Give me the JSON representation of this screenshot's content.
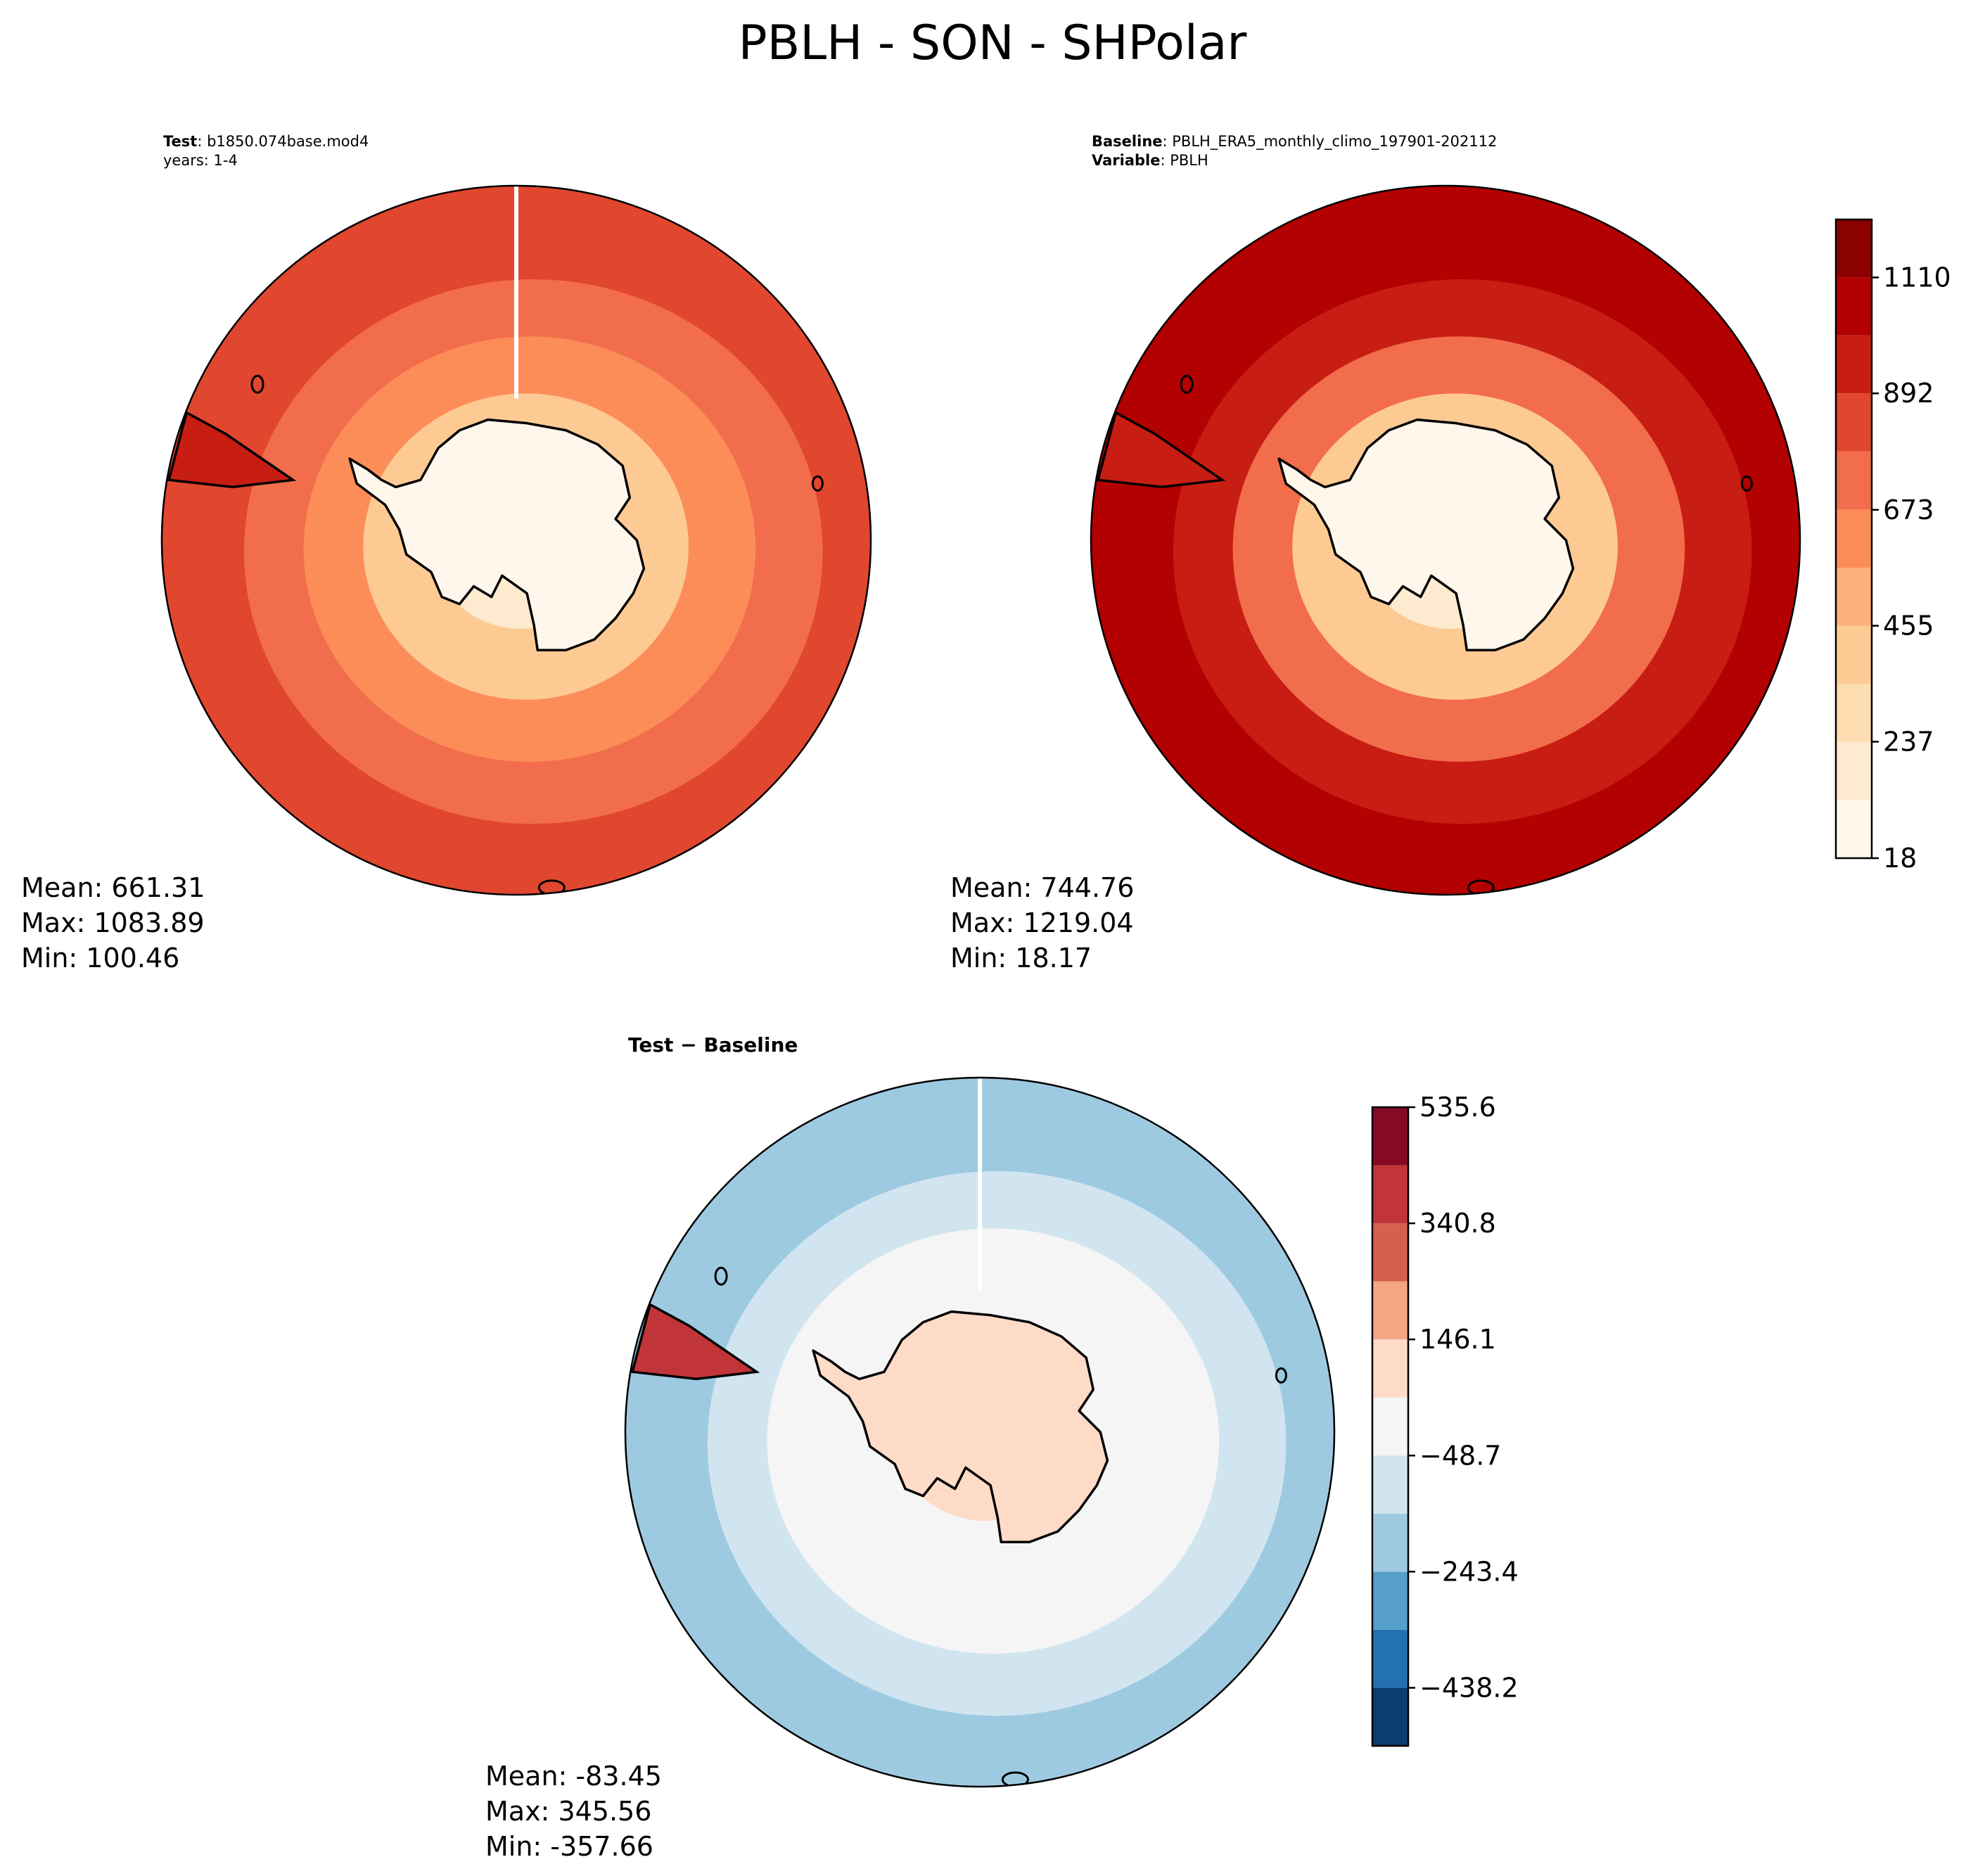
{
  "figure": {
    "title": "PBLH - SON - SHPolar"
  },
  "chart_data": [
    {
      "type": "heatmap",
      "projection": "south-polar-stereographic",
      "panel": "test",
      "caption_label": "Test",
      "caption_value": ": b1850.074base.mod4",
      "caption_line2": "years: 1-4",
      "colormap": "OrRd",
      "stats": {
        "mean": "Mean: 661.31",
        "max": "Max: 1083.89",
        "min": "Min: 100.46"
      },
      "field": {
        "pole_value": 120,
        "ring_values": [
          {
            "lat": -90,
            "value": 130
          },
          {
            "lat": -80,
            "value": 230
          },
          {
            "lat": -72,
            "value": 420
          },
          {
            "lat": -65,
            "value": 620
          },
          {
            "lat": -58,
            "value": 760
          },
          {
            "lat": -50,
            "value": 870
          }
        ]
      }
    },
    {
      "type": "heatmap",
      "projection": "south-polar-stereographic",
      "panel": "baseline",
      "caption_label": "Baseline",
      "caption_value": ": PBLH_ERA5_monthly_climo_197901-202112",
      "caption_label2": "Variable",
      "caption_value2": ": PBLH",
      "colormap": "OrRd",
      "stats": {
        "mean": "Mean: 744.76",
        "max": "Max: 1219.04",
        "min": "Min: 18.17"
      },
      "colorbar": {
        "ticks": [
          "18",
          "237",
          "455",
          "673",
          "892",
          "1110"
        ],
        "tick_values": [
          18,
          237,
          455,
          673,
          892,
          1110
        ],
        "range": [
          18,
          1219
        ],
        "levels": [
          18,
          127,
          237,
          346,
          455,
          564,
          673,
          783,
          892,
          1001,
          1110,
          1219
        ],
        "colors": [
          "#fff7ec",
          "#feebcf",
          "#fddcaf",
          "#fdca94",
          "#fdb07a",
          "#fc8d59",
          "#f26d4b",
          "#e1462f",
          "#c81d13",
          "#b30000",
          "#8b0000"
        ]
      },
      "field": {
        "pole_value": 60,
        "ring_values": [
          {
            "lat": -90,
            "value": 70
          },
          {
            "lat": -80,
            "value": 170
          },
          {
            "lat": -72,
            "value": 400
          },
          {
            "lat": -65,
            "value": 700
          },
          {
            "lat": -58,
            "value": 900
          },
          {
            "lat": -50,
            "value": 1040
          }
        ]
      }
    },
    {
      "type": "heatmap",
      "projection": "south-polar-stereographic",
      "panel": "difference",
      "caption_label": "Test − Baseline",
      "colormap": "RdBu_r",
      "stats": {
        "mean": "Mean: -83.45",
        "max": "Max: 345.56",
        "min": "Min: -357.66"
      },
      "colorbar": {
        "ticks": [
          "535.6",
          "340.8",
          "146.1",
          "−48.7",
          "−243.4",
          "−438.2"
        ],
        "tick_values": [
          535.6,
          340.8,
          146.1,
          -48.7,
          -243.4,
          -438.2
        ],
        "range": [
          -535.6,
          535.6
        ],
        "levels": [
          -535.6,
          -438.2,
          -340.8,
          -243.4,
          -146.1,
          -48.7,
          48.7,
          146.1,
          243.4,
          340.8,
          438.2,
          535.6
        ],
        "colors": [
          "#0d3d70",
          "#2471b2",
          "#569fcb",
          "#9ecae1",
          "#d1e5f0",
          "#f5f5f5",
          "#fddbc7",
          "#f4a582",
          "#d6604d",
          "#c13539",
          "#870a24"
        ]
      },
      "field": {
        "pole_value": 60,
        "ring_values": [
          {
            "lat": -90,
            "value": 60
          },
          {
            "lat": -80,
            "value": 60
          },
          {
            "lat": -72,
            "value": 10
          },
          {
            "lat": -65,
            "value": -30
          },
          {
            "lat": -58,
            "value": -120
          },
          {
            "lat": -50,
            "value": -170
          }
        ]
      }
    }
  ]
}
